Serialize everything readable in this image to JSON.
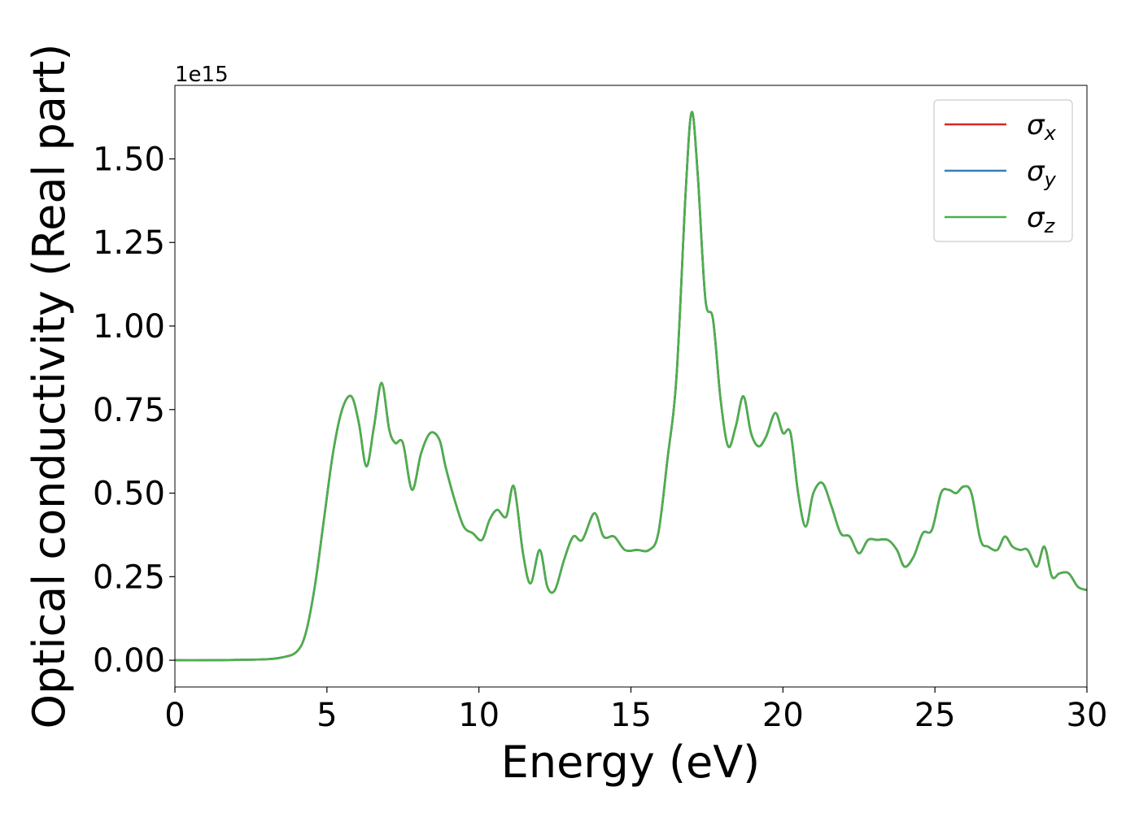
{
  "chart_data": {
    "type": "line",
    "xlabel": "Energy (eV)",
    "ylabel": "Optical conductivity (Real part)",
    "y_offset_text": "1e15",
    "xlim": [
      0,
      30
    ],
    "ylim": [
      -0.08,
      1.72
    ],
    "x_ticks": [
      0,
      5,
      10,
      15,
      20,
      25,
      30
    ],
    "x_tick_labels": [
      "0",
      "5",
      "10",
      "15",
      "20",
      "25",
      "30"
    ],
    "y_ticks": [
      0.0,
      0.25,
      0.5,
      0.75,
      1.0,
      1.25,
      1.5
    ],
    "y_tick_labels": [
      "0.00",
      "0.25",
      "0.50",
      "0.75",
      "1.00",
      "1.25",
      "1.50"
    ],
    "grid": false,
    "legend_position": "top-right",
    "x": [
      0,
      1,
      2,
      3,
      3.5,
      4,
      4.3,
      4.6,
      4.9,
      5.2,
      5.5,
      5.8,
      6.05,
      6.3,
      6.55,
      6.8,
      7.05,
      7.25,
      7.5,
      7.8,
      8.1,
      8.4,
      8.7,
      8.9,
      9.2,
      9.5,
      9.8,
      10.1,
      10.35,
      10.6,
      10.9,
      11.15,
      11.45,
      11.7,
      12.0,
      12.25,
      12.5,
      12.8,
      13.1,
      13.4,
      13.8,
      14.1,
      14.45,
      14.8,
      15.2,
      15.6,
      15.9,
      16.2,
      16.5,
      16.8,
      17.0,
      17.2,
      17.45,
      17.7,
      17.95,
      18.2,
      18.45,
      18.7,
      18.95,
      19.2,
      19.45,
      19.75,
      20.0,
      20.25,
      20.5,
      20.75,
      21.0,
      21.3,
      21.6,
      21.9,
      22.2,
      22.5,
      22.8,
      23.1,
      23.45,
      23.75,
      24.0,
      24.3,
      24.6,
      24.9,
      25.2,
      25.45,
      25.7,
      25.95,
      26.2,
      26.5,
      26.75,
      27.05,
      27.3,
      27.55,
      27.8,
      28.05,
      28.35,
      28.6,
      28.85,
      29.1,
      29.4,
      29.7,
      30.0
    ],
    "series": [
      {
        "name": "σx",
        "color": "#d62728",
        "values": [
          0,
          0,
          0.001,
          0.003,
          0.008,
          0.025,
          0.08,
          0.22,
          0.42,
          0.62,
          0.75,
          0.79,
          0.71,
          0.58,
          0.7,
          0.83,
          0.69,
          0.65,
          0.65,
          0.51,
          0.62,
          0.68,
          0.66,
          0.58,
          0.48,
          0.4,
          0.38,
          0.36,
          0.42,
          0.45,
          0.43,
          0.52,
          0.32,
          0.23,
          0.33,
          0.22,
          0.21,
          0.3,
          0.37,
          0.36,
          0.44,
          0.37,
          0.37,
          0.33,
          0.33,
          0.33,
          0.38,
          0.6,
          0.85,
          1.4,
          1.64,
          1.45,
          1.08,
          1.02,
          0.78,
          0.64,
          0.7,
          0.79,
          0.68,
          0.64,
          0.67,
          0.74,
          0.68,
          0.68,
          0.5,
          0.4,
          0.5,
          0.53,
          0.46,
          0.38,
          0.37,
          0.32,
          0.36,
          0.36,
          0.36,
          0.33,
          0.28,
          0.31,
          0.38,
          0.39,
          0.5,
          0.51,
          0.5,
          0.52,
          0.5,
          0.36,
          0.34,
          0.33,
          0.37,
          0.34,
          0.33,
          0.33,
          0.28,
          0.34,
          0.25,
          0.26,
          0.26,
          0.22,
          0.21
        ]
      },
      {
        "name": "σy",
        "color": "#377eb8",
        "values": [
          0,
          0,
          0.001,
          0.003,
          0.008,
          0.025,
          0.08,
          0.22,
          0.42,
          0.62,
          0.75,
          0.79,
          0.71,
          0.58,
          0.7,
          0.83,
          0.69,
          0.65,
          0.65,
          0.51,
          0.62,
          0.68,
          0.66,
          0.58,
          0.48,
          0.4,
          0.38,
          0.36,
          0.42,
          0.45,
          0.43,
          0.52,
          0.32,
          0.23,
          0.33,
          0.22,
          0.21,
          0.3,
          0.37,
          0.36,
          0.44,
          0.37,
          0.37,
          0.33,
          0.33,
          0.33,
          0.38,
          0.6,
          0.85,
          1.4,
          1.64,
          1.45,
          1.08,
          1.02,
          0.78,
          0.64,
          0.7,
          0.79,
          0.68,
          0.64,
          0.67,
          0.74,
          0.68,
          0.68,
          0.5,
          0.4,
          0.5,
          0.53,
          0.46,
          0.38,
          0.37,
          0.32,
          0.36,
          0.36,
          0.36,
          0.33,
          0.28,
          0.31,
          0.38,
          0.39,
          0.5,
          0.51,
          0.5,
          0.52,
          0.5,
          0.36,
          0.34,
          0.33,
          0.37,
          0.34,
          0.33,
          0.33,
          0.28,
          0.34,
          0.25,
          0.26,
          0.26,
          0.22,
          0.21
        ]
      },
      {
        "name": "σz",
        "color": "#4daf4a",
        "values": [
          0,
          0,
          0.001,
          0.003,
          0.008,
          0.025,
          0.08,
          0.22,
          0.42,
          0.62,
          0.75,
          0.79,
          0.71,
          0.58,
          0.7,
          0.83,
          0.69,
          0.65,
          0.65,
          0.51,
          0.62,
          0.68,
          0.66,
          0.58,
          0.48,
          0.4,
          0.38,
          0.36,
          0.42,
          0.45,
          0.43,
          0.52,
          0.32,
          0.23,
          0.33,
          0.22,
          0.21,
          0.3,
          0.37,
          0.36,
          0.44,
          0.37,
          0.37,
          0.33,
          0.33,
          0.33,
          0.38,
          0.6,
          0.85,
          1.4,
          1.64,
          1.45,
          1.08,
          1.02,
          0.78,
          0.64,
          0.7,
          0.79,
          0.68,
          0.64,
          0.67,
          0.74,
          0.68,
          0.68,
          0.5,
          0.4,
          0.5,
          0.53,
          0.46,
          0.38,
          0.37,
          0.32,
          0.36,
          0.36,
          0.36,
          0.33,
          0.28,
          0.31,
          0.38,
          0.39,
          0.5,
          0.51,
          0.5,
          0.52,
          0.5,
          0.36,
          0.34,
          0.33,
          0.37,
          0.34,
          0.33,
          0.33,
          0.28,
          0.34,
          0.25,
          0.26,
          0.26,
          0.22,
          0.21
        ]
      }
    ]
  }
}
